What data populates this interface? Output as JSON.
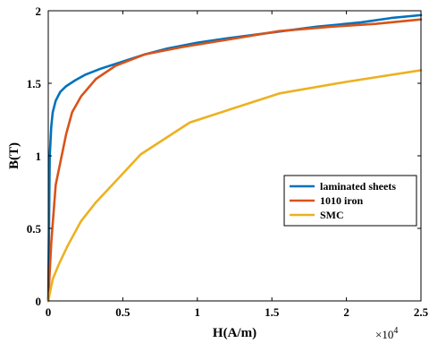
{
  "chart_data": {
    "type": "line",
    "xlabel": "H(A/m)",
    "ylabel": "B(T)",
    "xlim": [
      0,
      25000
    ],
    "ylim": [
      0,
      2
    ],
    "x_ticks": [
      0,
      5000,
      10000,
      15000,
      20000,
      25000
    ],
    "x_tick_labels": [
      "0",
      "0.5",
      "1",
      "1.5",
      "2",
      "2.5"
    ],
    "y_ticks": [
      0,
      0.5,
      1,
      1.5,
      2
    ],
    "y_tick_labels": [
      "0",
      "0.5",
      "1",
      "1.5",
      "2"
    ],
    "x_multiplier": {
      "base": "×10",
      "exponent": "4"
    },
    "grid": false,
    "legend_position": "center-right",
    "series": [
      {
        "name": "laminated sheets",
        "color": "#0072BD",
        "x": [
          0,
          100,
          200,
          300,
          500,
          800,
          1200,
          1800,
          2500,
          3500,
          5000,
          6500,
          8000,
          10000,
          12000,
          15000,
          18000,
          21000,
          23000,
          25000
        ],
        "y": [
          0,
          1.0,
          1.2,
          1.3,
          1.38,
          1.44,
          1.48,
          1.52,
          1.56,
          1.6,
          1.65,
          1.7,
          1.74,
          1.78,
          1.81,
          1.85,
          1.89,
          1.92,
          1.95,
          1.97
        ]
      },
      {
        "name": "1010 iron",
        "color": "#D95319",
        "x": [
          0,
          200,
          500,
          800,
          1200,
          1600,
          2200,
          3200,
          4500,
          6500,
          9000,
          12000,
          15500,
          19000,
          22000,
          25000
        ],
        "y": [
          0,
          0.4,
          0.8,
          0.95,
          1.15,
          1.3,
          1.41,
          1.53,
          1.62,
          1.7,
          1.75,
          1.8,
          1.86,
          1.89,
          1.91,
          1.94
        ]
      },
      {
        "name": "SMC",
        "color": "#EDB120",
        "x": [
          0,
          300,
          700,
          1300,
          2200,
          3200,
          4300,
          6200,
          9500,
          15500,
          20000,
          25000
        ],
        "y": [
          0,
          0.15,
          0.25,
          0.38,
          0.55,
          0.68,
          0.8,
          1.01,
          1.23,
          1.43,
          1.51,
          1.59
        ]
      }
    ]
  }
}
